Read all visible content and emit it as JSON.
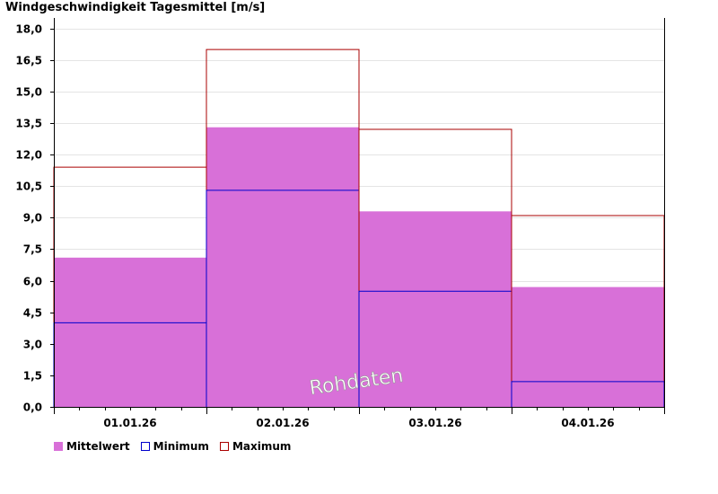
{
  "chart_data": {
    "type": "bar",
    "title": "Windgeschwindigkeit Tagesmittel [m/s]",
    "categories": [
      "01.01.26",
      "02.01.26",
      "03.01.26",
      "04.01.26"
    ],
    "series": [
      {
        "name": "Mittelwert",
        "values": [
          7.1,
          13.3,
          9.3,
          5.7
        ],
        "color": "#d870d8"
      },
      {
        "name": "Minimum",
        "values": [
          4.0,
          10.3,
          5.5,
          1.2
        ],
        "color": "#0000cc"
      },
      {
        "name": "Maximum",
        "values": [
          11.4,
          17.0,
          13.2,
          9.1
        ],
        "color": "#aa0000"
      }
    ],
    "yticks": [
      "0,0",
      "1,5",
      "3,0",
      "4,5",
      "6,0",
      "7,5",
      "9,0",
      "10,5",
      "12,0",
      "13,5",
      "15,0",
      "16,5",
      "18,0"
    ],
    "ylim": [
      0,
      18.5
    ],
    "ystep": 1.5,
    "grid": true,
    "legend_position": "bottom-left",
    "watermark": "Rohdaten"
  }
}
